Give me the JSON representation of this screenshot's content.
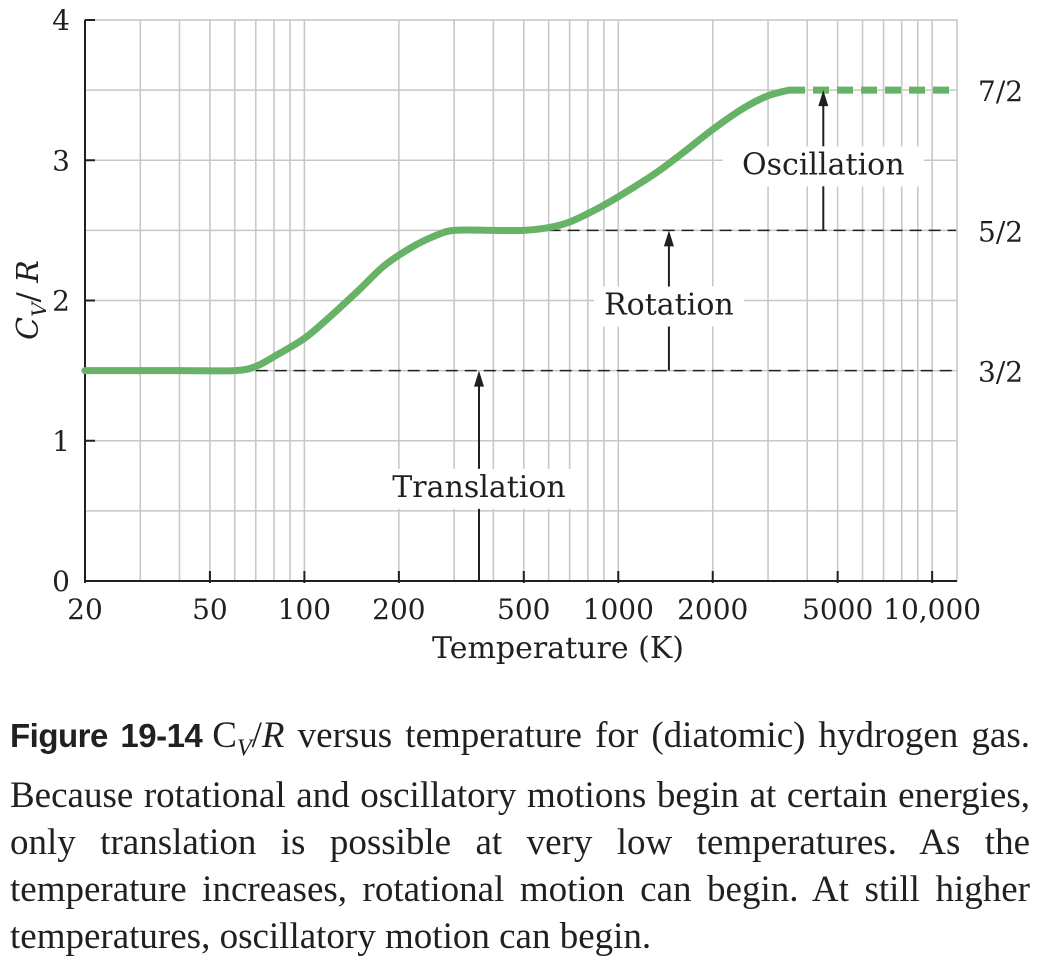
{
  "chart_data": {
    "type": "line",
    "xscale": "log",
    "xlim": [
      20,
      12000
    ],
    "ylim": [
      0,
      4
    ],
    "grid": true,
    "xlabel": "Temperature (K)",
    "ylabel": "C_V / R",
    "x_ticks": [
      {
        "value": 20,
        "label": "20"
      },
      {
        "value": 50,
        "label": "50"
      },
      {
        "value": 100,
        "label": "100"
      },
      {
        "value": 200,
        "label": "200"
      },
      {
        "value": 500,
        "label": "500"
      },
      {
        "value": 1000,
        "label": "1000"
      },
      {
        "value": 2000,
        "label": "2000"
      },
      {
        "value": 5000,
        "label": "5000"
      },
      {
        "value": 10000,
        "label": "10,000"
      }
    ],
    "y_ticks": [
      {
        "value": 0,
        "label": "0"
      },
      {
        "value": 1,
        "label": "1"
      },
      {
        "value": 2,
        "label": "2"
      },
      {
        "value": 3,
        "label": "3"
      },
      {
        "value": 4,
        "label": "4"
      }
    ],
    "right_ticks": [
      {
        "value": 1.5,
        "label": "3/2"
      },
      {
        "value": 2.5,
        "label": "5/2"
      },
      {
        "value": 3.5,
        "label": "7/2"
      }
    ],
    "series": [
      {
        "color": "#66b266",
        "solid_points": [
          [
            20,
            1.5
          ],
          [
            40,
            1.5
          ],
          [
            60,
            1.5
          ],
          [
            70,
            1.53
          ],
          [
            80,
            1.6
          ],
          [
            100,
            1.73
          ],
          [
            120,
            1.88
          ],
          [
            150,
            2.08
          ],
          [
            180,
            2.25
          ],
          [
            220,
            2.38
          ],
          [
            260,
            2.46
          ],
          [
            300,
            2.5
          ],
          [
            400,
            2.5
          ],
          [
            500,
            2.5
          ],
          [
            600,
            2.52
          ],
          [
            700,
            2.56
          ],
          [
            850,
            2.65
          ],
          [
            1000,
            2.74
          ],
          [
            1300,
            2.9
          ],
          [
            1600,
            3.05
          ],
          [
            2000,
            3.22
          ],
          [
            2500,
            3.37
          ],
          [
            3000,
            3.46
          ],
          [
            3500,
            3.5
          ]
        ],
        "dashed_points": [
          [
            3500,
            3.5
          ],
          [
            12000,
            3.5
          ]
        ]
      }
    ],
    "reference_lines": [
      {
        "y": 1.5,
        "x_start": 70,
        "x_end": 12000
      },
      {
        "y": 2.5,
        "x_start": 600,
        "x_end": 12000
      }
    ],
    "annotations": [
      {
        "text": "Translation",
        "x": 360,
        "arrow_from": 0,
        "arrow_to": 1.5,
        "text_y": 0.6
      },
      {
        "text": "Rotation",
        "x": 1450,
        "arrow_from": 1.5,
        "arrow_to": 2.5,
        "text_y": 1.9
      },
      {
        "text": "Oscillation",
        "x": 4500,
        "arrow_from": 2.5,
        "arrow_to": 3.5,
        "text_y": 2.9
      }
    ]
  },
  "caption": {
    "label": "Figure 19-14",
    "cv_main": "C",
    "cv_sub": "V",
    "cv_slash": "/",
    "cv_r": "R",
    "text": " versus temperature for (diatomic) hydrogen gas. Because rotational and oscillatory motions begin at certain energies, only translation is possible at very low temperatures. As the temperature increases, rotational motion can begin. At still higher temperatures, oscillatory motion can begin."
  }
}
